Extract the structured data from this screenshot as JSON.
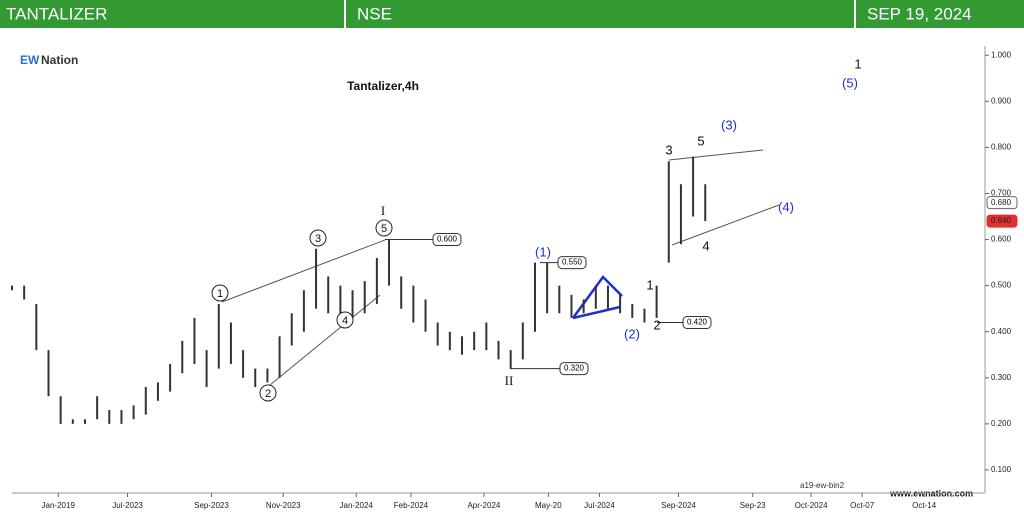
{
  "header": {
    "symbol": "TANTALIZER",
    "exchange": "NSE",
    "date": "SEP 19, 2024"
  },
  "logo": {
    "mark": "EW",
    "name": "Nation"
  },
  "footer": {
    "code": "a19-ew-bin2",
    "site": "www.ewnation.com"
  },
  "chart_data": {
    "type": "hlbar",
    "title": "Tantalizer,4h",
    "color": "#333333",
    "x": [
      0,
      1,
      2,
      3,
      4,
      5,
      6,
      7,
      8,
      9,
      10,
      11,
      12,
      13,
      14,
      15,
      16,
      17,
      18,
      19,
      20,
      21,
      22,
      23,
      24,
      25,
      26,
      27,
      28,
      29,
      30,
      31,
      32,
      33,
      34,
      35,
      36,
      37,
      38,
      39,
      40,
      41,
      42,
      43,
      44,
      45,
      46,
      47,
      48,
      49,
      50,
      51,
      52,
      53,
      54,
      55,
      56,
      57
    ],
    "series": [
      {
        "name": "High",
        "values": [
          0.5,
          0.5,
          0.46,
          0.36,
          0.26,
          0.21,
          0.21,
          0.26,
          0.23,
          0.23,
          0.24,
          0.28,
          0.29,
          0.33,
          0.38,
          0.43,
          0.36,
          0.46,
          0.42,
          0.36,
          0.32,
          0.32,
          0.39,
          0.44,
          0.49,
          0.58,
          0.52,
          0.5,
          0.49,
          0.51,
          0.56,
          0.6,
          0.52,
          0.5,
          0.47,
          0.42,
          0.4,
          0.39,
          0.4,
          0.42,
          0.38,
          0.36,
          0.42,
          0.55,
          0.55,
          0.5,
          0.48,
          0.47,
          0.5,
          0.5,
          0.48,
          0.46,
          0.45,
          0.5,
          0.77,
          0.72,
          0.78,
          0.72
        ]
      },
      {
        "name": "Low",
        "values": [
          0.49,
          0.47,
          0.36,
          0.26,
          0.2,
          0.2,
          0.2,
          0.21,
          0.2,
          0.2,
          0.21,
          0.22,
          0.25,
          0.27,
          0.31,
          0.33,
          0.28,
          0.32,
          0.33,
          0.3,
          0.28,
          0.29,
          0.3,
          0.37,
          0.4,
          0.45,
          0.44,
          0.42,
          0.43,
          0.44,
          0.46,
          0.5,
          0.45,
          0.42,
          0.4,
          0.37,
          0.36,
          0.35,
          0.36,
          0.36,
          0.34,
          0.32,
          0.34,
          0.4,
          0.44,
          0.44,
          0.43,
          0.44,
          0.45,
          0.45,
          0.44,
          0.43,
          0.42,
          0.43,
          0.55,
          0.59,
          0.65,
          0.64
        ]
      }
    ],
    "xlim": [
      0,
      80
    ],
    "xticks": [
      {
        "value": 3.8,
        "label": "Jan-2019"
      },
      {
        "value": 9.5,
        "label": "Jul-2023"
      },
      {
        "value": 16.4,
        "label": "Sep-2023"
      },
      {
        "value": 22.3,
        "label": "Nov-2023"
      },
      {
        "value": 28.3,
        "label": "Jan-2024"
      },
      {
        "value": 32.8,
        "label": "Feb-2024"
      },
      {
        "value": 38.8,
        "label": "Apr-2024"
      },
      {
        "value": 44.1,
        "label": "May-20"
      },
      {
        "value": 48.3,
        "label": "Jul-2024"
      },
      {
        "value": 54.8,
        "label": "Sep-2024"
      },
      {
        "value": 60.9,
        "label": "Sep-23"
      },
      {
        "value": 65.7,
        "label": "Oct-2024"
      },
      {
        "value": 69.9,
        "label": "Oct-07"
      },
      {
        "value": 75,
        "label": "Oct-14"
      }
    ],
    "ylim": [
      0.05,
      1.02
    ],
    "yticks": [
      {
        "value": 0.1,
        "label": "0.100"
      },
      {
        "value": 0.2,
        "label": "0.200"
      },
      {
        "value": 0.3,
        "label": "0.300"
      },
      {
        "value": 0.4,
        "label": "0.400"
      },
      {
        "value": 0.5,
        "label": "0.500"
      },
      {
        "value": 0.6,
        "label": "0.600"
      },
      {
        "value": 0.7,
        "label": "0.700"
      },
      {
        "value": 0.8,
        "label": "0.800"
      },
      {
        "value": 0.9,
        "label": "0.900"
      },
      {
        "value": 1.0,
        "label": "1.000"
      }
    ],
    "last_price": {
      "value": 0.64,
      "label": "0.640",
      "color": "#e03030"
    },
    "prev_price": {
      "value": 0.68,
      "label": "0.680"
    },
    "price_labels": [
      {
        "value": 0.6,
        "label": "0.600"
      },
      {
        "value": 0.55,
        "label": "0.550"
      },
      {
        "value": 0.42,
        "label": "0.420"
      },
      {
        "value": 0.32,
        "label": "0.320"
      }
    ],
    "annotations": [
      "1",
      "2",
      "3",
      "4",
      "5",
      "I",
      "II",
      "(1)",
      "(2)",
      "(3)",
      "(4)",
      "(5)",
      "1",
      "2",
      "3",
      "4",
      "5",
      "1"
    ]
  }
}
